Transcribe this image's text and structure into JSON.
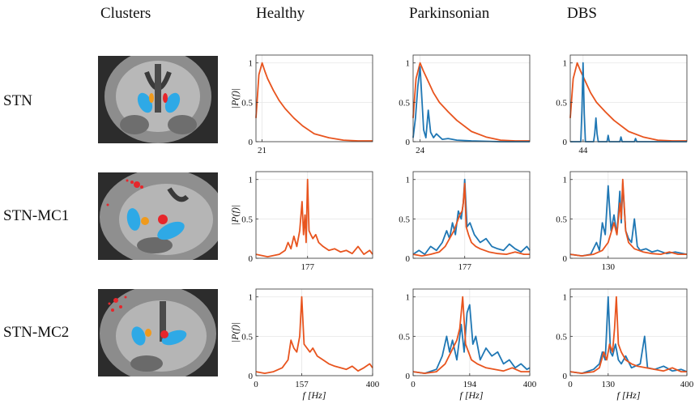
{
  "column_headers": [
    "Clusters",
    "Healthy",
    "Parkinsonian",
    "DBS"
  ],
  "row_labels": [
    "STN",
    "STN-MC1",
    "STN-MC2"
  ],
  "colors": {
    "blue": "#1f77b4",
    "orange": "#e8541e",
    "cluster_blue": "#2ea9e6",
    "cluster_red": "#e6262b",
    "cluster_orange": "#f09a1c"
  },
  "chart_data": [
    {
      "type": "line",
      "row": "STN",
      "column": "Healthy",
      "ylabel": "|P(f)|",
      "xlabel": "",
      "xlim": [
        0,
        400
      ],
      "ylim": [
        0,
        1.1
      ],
      "yticks": [
        0,
        0.5,
        1
      ],
      "xtick_labels": [
        "21"
      ],
      "xtick_values": [
        21
      ],
      "series": [
        {
          "color": "orange",
          "x": [
            0,
            10,
            21,
            30,
            40,
            60,
            80,
            100,
            130,
            160,
            200,
            250,
            300,
            350,
            400
          ],
          "y": [
            0.3,
            0.85,
            1.0,
            0.9,
            0.8,
            0.65,
            0.52,
            0.42,
            0.3,
            0.2,
            0.1,
            0.05,
            0.02,
            0.01,
            0.01
          ]
        }
      ]
    },
    {
      "type": "line",
      "row": "STN",
      "column": "Parkinsonian",
      "ylabel": "",
      "xlabel": "",
      "xlim": [
        0,
        400
      ],
      "ylim": [
        0,
        1.1
      ],
      "yticks": [
        0,
        0.5,
        1
      ],
      "xtick_labels": [
        "24"
      ],
      "xtick_values": [
        24
      ],
      "series": [
        {
          "color": "orange",
          "x": [
            0,
            10,
            24,
            35,
            50,
            70,
            90,
            120,
            150,
            200,
            250,
            300,
            350,
            400
          ],
          "y": [
            0.3,
            0.8,
            1.0,
            0.9,
            0.78,
            0.62,
            0.5,
            0.38,
            0.27,
            0.13,
            0.06,
            0.02,
            0.01,
            0.01
          ]
        },
        {
          "color": "blue",
          "x": [
            0,
            8,
            16,
            24,
            30,
            36,
            44,
            52,
            60,
            70,
            80,
            100,
            120,
            150,
            200,
            300,
            400
          ],
          "y": [
            0.05,
            0.3,
            0.7,
            0.95,
            0.55,
            0.15,
            0.05,
            0.4,
            0.12,
            0.05,
            0.1,
            0.03,
            0.04,
            0.02,
            0.01,
            0.0,
            0.0
          ]
        }
      ]
    },
    {
      "type": "line",
      "row": "STN",
      "column": "DBS",
      "ylabel": "",
      "xlabel": "",
      "xlim": [
        0,
        400
      ],
      "ylim": [
        0,
        1.1
      ],
      "yticks": [
        0,
        0.5,
        1
      ],
      "xtick_labels": [
        "44"
      ],
      "xtick_values": [
        44
      ],
      "series": [
        {
          "color": "orange",
          "x": [
            0,
            10,
            24,
            35,
            50,
            70,
            90,
            120,
            150,
            200,
            250,
            300,
            350,
            400
          ],
          "y": [
            0.3,
            0.8,
            1.0,
            0.9,
            0.78,
            0.62,
            0.5,
            0.38,
            0.27,
            0.13,
            0.06,
            0.02,
            0.01,
            0.01
          ]
        },
        {
          "color": "blue",
          "x": [
            0,
            36,
            40,
            44,
            48,
            52,
            80,
            84,
            88,
            92,
            96,
            126,
            130,
            134,
            170,
            174,
            178,
            220,
            224,
            228,
            300,
            400
          ],
          "y": [
            0.0,
            0.0,
            0.4,
            1.0,
            0.35,
            0.0,
            0.0,
            0.1,
            0.3,
            0.1,
            0.0,
            0.0,
            0.08,
            0.0,
            0.0,
            0.06,
            0.0,
            0.0,
            0.04,
            0.0,
            0.0,
            0.0
          ]
        }
      ]
    },
    {
      "type": "line",
      "row": "STN-MC1",
      "column": "Healthy",
      "ylabel": "|P(f)|",
      "xlabel": "",
      "xlim": [
        0,
        400
      ],
      "ylim": [
        0,
        1.1
      ],
      "yticks": [
        0,
        0.5,
        1
      ],
      "xtick_labels": [
        "177"
      ],
      "xtick_values": [
        177
      ],
      "series": [
        {
          "color": "orange",
          "x": [
            0,
            40,
            80,
            100,
            110,
            120,
            130,
            140,
            150,
            158,
            163,
            168,
            172,
            177,
            182,
            188,
            195,
            205,
            215,
            230,
            250,
            270,
            290,
            310,
            330,
            350,
            370,
            390,
            400
          ],
          "y": [
            0.05,
            0.02,
            0.05,
            0.1,
            0.2,
            0.12,
            0.28,
            0.15,
            0.35,
            0.72,
            0.3,
            0.55,
            0.2,
            1.0,
            0.35,
            0.3,
            0.25,
            0.3,
            0.2,
            0.15,
            0.1,
            0.12,
            0.08,
            0.1,
            0.06,
            0.15,
            0.05,
            0.1,
            0.05
          ]
        }
      ]
    },
    {
      "type": "line",
      "row": "STN-MC1",
      "column": "Parkinsonian",
      "ylabel": "",
      "xlabel": "",
      "xlim": [
        0,
        400
      ],
      "ylim": [
        0,
        1.1
      ],
      "yticks": [
        0,
        0.5,
        1
      ],
      "xtick_labels": [
        "177"
      ],
      "xtick_values": [
        177
      ],
      "series": [
        {
          "color": "blue",
          "x": [
            0,
            20,
            40,
            60,
            80,
            100,
            115,
            125,
            135,
            145,
            155,
            165,
            172,
            177,
            185,
            195,
            210,
            230,
            250,
            270,
            290,
            310,
            330,
            350,
            370,
            390,
            400
          ],
          "y": [
            0.05,
            0.1,
            0.05,
            0.15,
            0.1,
            0.2,
            0.35,
            0.25,
            0.45,
            0.3,
            0.6,
            0.5,
            0.7,
            1.0,
            0.4,
            0.45,
            0.3,
            0.2,
            0.25,
            0.15,
            0.12,
            0.1,
            0.18,
            0.12,
            0.08,
            0.15,
            0.1
          ]
        },
        {
          "color": "orange",
          "x": [
            0,
            30,
            60,
            90,
            110,
            125,
            140,
            150,
            160,
            168,
            172,
            177,
            182,
            190,
            200,
            215,
            230,
            260,
            290,
            320,
            350,
            380,
            400
          ],
          "y": [
            0.05,
            0.03,
            0.05,
            0.08,
            0.15,
            0.25,
            0.35,
            0.45,
            0.55,
            0.6,
            0.7,
            0.95,
            0.4,
            0.3,
            0.2,
            0.15,
            0.12,
            0.08,
            0.06,
            0.05,
            0.08,
            0.05,
            0.05
          ]
        }
      ]
    },
    {
      "type": "line",
      "row": "STN-MC1",
      "column": "DBS",
      "ylabel": "",
      "xlabel": "",
      "xlim": [
        0,
        400
      ],
      "ylim": [
        0,
        1.1
      ],
      "yticks": [
        0,
        0.5,
        1
      ],
      "xtick_labels": [
        "130"
      ],
      "xtick_values": [
        130
      ],
      "series": [
        {
          "color": "blue",
          "x": [
            0,
            40,
            70,
            90,
            100,
            110,
            120,
            130,
            140,
            150,
            160,
            170,
            175,
            180,
            190,
            200,
            210,
            220,
            230,
            240,
            260,
            280,
            300,
            330,
            360,
            400
          ],
          "y": [
            0.05,
            0.03,
            0.05,
            0.2,
            0.1,
            0.45,
            0.3,
            0.92,
            0.35,
            0.55,
            0.3,
            0.85,
            0.45,
            0.95,
            0.35,
            0.25,
            0.2,
            0.5,
            0.15,
            0.1,
            0.12,
            0.08,
            0.1,
            0.06,
            0.08,
            0.05
          ]
        },
        {
          "color": "orange",
          "x": [
            0,
            40,
            80,
            110,
            130,
            150,
            160,
            170,
            175,
            180,
            190,
            200,
            220,
            250,
            280,
            310,
            340,
            370,
            400
          ],
          "y": [
            0.05,
            0.03,
            0.05,
            0.1,
            0.2,
            0.45,
            0.3,
            0.7,
            0.5,
            1.0,
            0.35,
            0.2,
            0.12,
            0.08,
            0.06,
            0.05,
            0.08,
            0.05,
            0.05
          ]
        }
      ]
    },
    {
      "type": "line",
      "row": "STN-MC2",
      "column": "Healthy",
      "ylabel": "|P(f)|",
      "xlabel": "f [Hz]",
      "xlim": [
        0,
        400
      ],
      "ylim": [
        0,
        1.1
      ],
      "yticks": [
        0,
        0.5,
        1
      ],
      "xtick_labels": [
        "0",
        "157",
        "400"
      ],
      "xtick_values": [
        0,
        157,
        400
      ],
      "series": [
        {
          "color": "orange",
          "x": [
            0,
            30,
            60,
            90,
            110,
            120,
            130,
            140,
            150,
            157,
            165,
            175,
            185,
            195,
            210,
            230,
            250,
            270,
            290,
            310,
            330,
            350,
            370,
            390,
            400
          ],
          "y": [
            0.05,
            0.03,
            0.05,
            0.1,
            0.2,
            0.45,
            0.35,
            0.3,
            0.5,
            1.0,
            0.4,
            0.35,
            0.3,
            0.35,
            0.25,
            0.2,
            0.15,
            0.12,
            0.1,
            0.08,
            0.12,
            0.06,
            0.1,
            0.15,
            0.1
          ]
        }
      ]
    },
    {
      "type": "line",
      "row": "STN-MC2",
      "column": "Parkinsonian",
      "ylabel": "",
      "xlabel": "f [Hz]",
      "xlim": [
        0,
        400
      ],
      "ylim": [
        0,
        1.1
      ],
      "yticks": [
        0,
        0.5,
        1
      ],
      "xtick_labels": [
        "0",
        "194",
        "400"
      ],
      "xtick_values": [
        0,
        194,
        400
      ],
      "series": [
        {
          "color": "blue",
          "x": [
            0,
            40,
            80,
            100,
            115,
            125,
            135,
            150,
            165,
            175,
            185,
            194,
            205,
            215,
            230,
            250,
            270,
            290,
            310,
            330,
            350,
            370,
            390,
            400
          ],
          "y": [
            0.05,
            0.03,
            0.08,
            0.25,
            0.5,
            0.3,
            0.45,
            0.2,
            0.65,
            0.3,
            0.8,
            0.9,
            0.4,
            0.5,
            0.2,
            0.35,
            0.25,
            0.3,
            0.15,
            0.2,
            0.1,
            0.15,
            0.08,
            0.1
          ]
        },
        {
          "color": "orange",
          "x": [
            0,
            40,
            80,
            110,
            130,
            150,
            160,
            170,
            180,
            190,
            200,
            220,
            250,
            280,
            310,
            340,
            370,
            400
          ],
          "y": [
            0.05,
            0.03,
            0.05,
            0.15,
            0.3,
            0.45,
            0.6,
            1.0,
            0.4,
            0.3,
            0.2,
            0.15,
            0.1,
            0.08,
            0.06,
            0.1,
            0.05,
            0.05
          ]
        }
      ]
    },
    {
      "type": "line",
      "row": "STN-MC2",
      "column": "DBS",
      "ylabel": "",
      "xlabel": "f [Hz]",
      "xlim": [
        0,
        400
      ],
      "ylim": [
        0,
        1.1
      ],
      "yticks": [
        0,
        0.5,
        1
      ],
      "xtick_labels": [
        "0",
        "130",
        "400"
      ],
      "xtick_values": [
        0,
        130,
        400
      ],
      "series": [
        {
          "color": "blue",
          "x": [
            0,
            40,
            80,
            100,
            110,
            120,
            130,
            138,
            145,
            155,
            165,
            175,
            190,
            210,
            240,
            255,
            265,
            290,
            320,
            350,
            380,
            400
          ],
          "y": [
            0.05,
            0.03,
            0.08,
            0.15,
            0.3,
            0.2,
            1.0,
            0.3,
            0.25,
            0.4,
            0.2,
            0.15,
            0.25,
            0.1,
            0.15,
            0.5,
            0.1,
            0.08,
            0.12,
            0.06,
            0.08,
            0.05
          ]
        },
        {
          "color": "orange",
          "x": [
            0,
            40,
            80,
            100,
            115,
            125,
            135,
            145,
            152,
            158,
            165,
            175,
            190,
            210,
            230,
            260,
            290,
            320,
            350,
            380,
            400
          ],
          "y": [
            0.05,
            0.03,
            0.05,
            0.1,
            0.3,
            0.2,
            0.4,
            0.3,
            0.6,
            1.0,
            0.4,
            0.3,
            0.2,
            0.15,
            0.12,
            0.1,
            0.08,
            0.06,
            0.1,
            0.05,
            0.05
          ]
        }
      ]
    }
  ]
}
